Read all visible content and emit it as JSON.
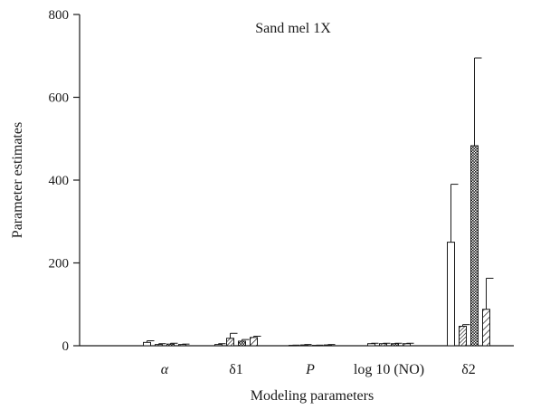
{
  "chart_data": {
    "type": "bar",
    "title": "Sand mel 1X",
    "xlabel": "Modeling parameters",
    "ylabel": "Parameter estimates",
    "ylim": [
      0,
      800
    ],
    "yticks": [
      0,
      200,
      400,
      600,
      800
    ],
    "categories": [
      "α",
      "δ1",
      "P",
      "log 10 (NO)",
      "δ2"
    ],
    "italic_categories": [
      0,
      2
    ],
    "series": [
      {
        "pattern": "white",
        "values": [
          8,
          3,
          1,
          5,
          250
        ],
        "errors": [
          4,
          2,
          0.5,
          1,
          140
        ]
      },
      {
        "pattern": "hatch-dense",
        "values": [
          3,
          18,
          2,
          5,
          47
        ],
        "errors": [
          2,
          12,
          1,
          1,
          4
        ]
      },
      {
        "pattern": "crosshatch",
        "values": [
          4,
          11,
          1,
          5,
          483
        ],
        "errors": [
          2,
          4,
          0.5,
          1,
          212
        ]
      },
      {
        "pattern": "hatch-wide",
        "values": [
          3,
          20,
          2,
          5,
          88
        ],
        "errors": [
          1,
          3,
          1,
          1,
          75
        ]
      }
    ],
    "grid": false,
    "legend": "none"
  }
}
